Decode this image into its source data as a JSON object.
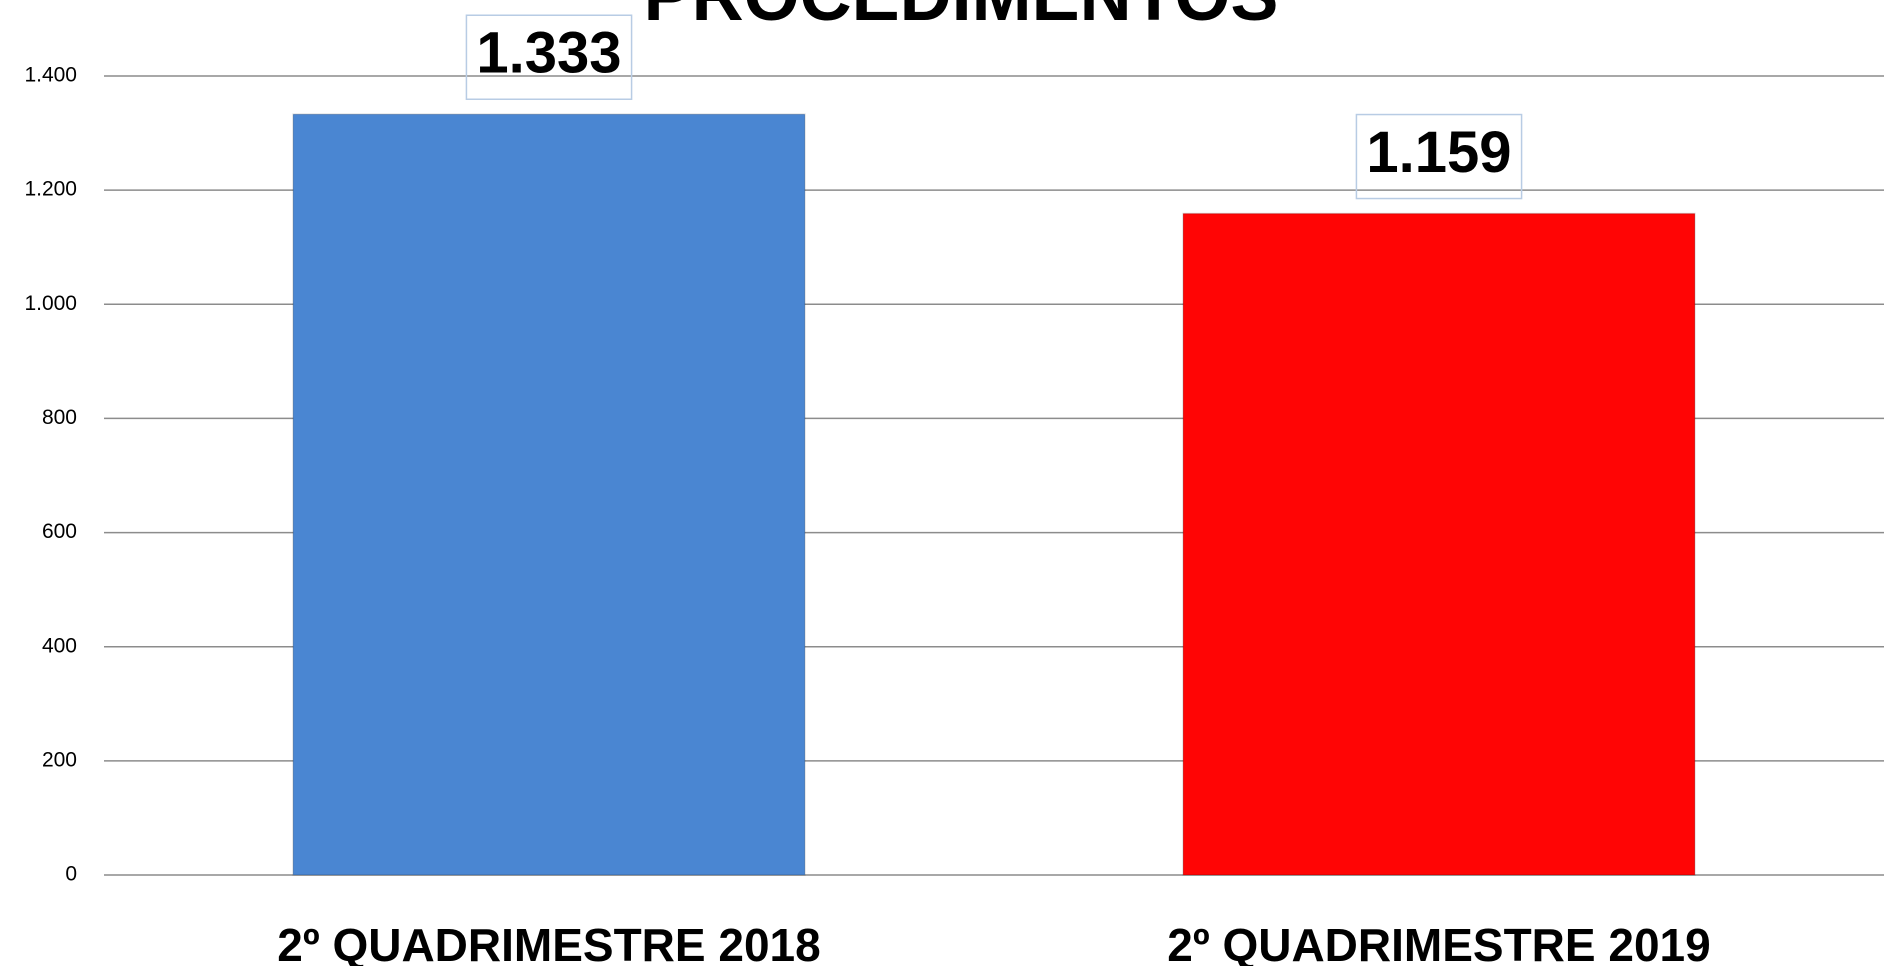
{
  "chart_data": {
    "type": "bar",
    "title": "PROCEDIMENTOS",
    "categories": [
      "2º QUADRIMESTRE 2018",
      "2º QUADRIMESTRE 2019"
    ],
    "values": [
      1333,
      1159
    ],
    "value_labels": [
      "1.333",
      "1.159"
    ],
    "colors": [
      "#4a86d2",
      "#ff0505"
    ],
    "ylim": [
      0,
      1400
    ],
    "yticks": [
      0,
      200,
      400,
      600,
      800,
      {
        "value": 1000,
        "label": "1.000"
      },
      {
        "value": 1200,
        "label": "1.200"
      },
      {
        "value": 1400,
        "label": "1.400"
      }
    ],
    "grid": true
  }
}
